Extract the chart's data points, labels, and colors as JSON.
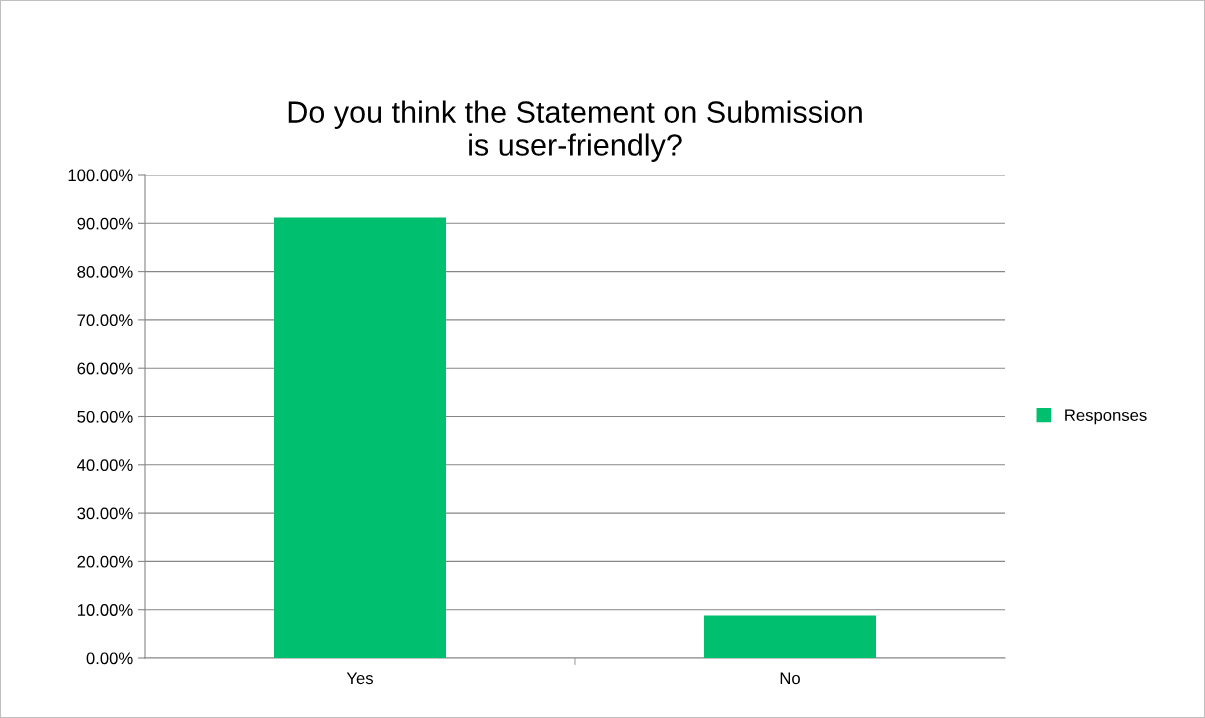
{
  "chart_data": {
    "type": "bar",
    "title": "Do you think the Statement on Submission\nis user-friendly?",
    "categories": [
      "Yes",
      "No"
    ],
    "series": [
      {
        "name": "Responses",
        "color": "#00bf6f",
        "values": [
          91.2,
          8.8
        ]
      }
    ],
    "ylim": [
      0,
      100
    ],
    "yticks": [
      {
        "value": 0,
        "label": "0.00%"
      },
      {
        "value": 10,
        "label": "10.00%"
      },
      {
        "value": 20,
        "label": "20.00%"
      },
      {
        "value": 30,
        "label": "30.00%"
      },
      {
        "value": 40,
        "label": "40.00%"
      },
      {
        "value": 50,
        "label": "50.00%"
      },
      {
        "value": 60,
        "label": "60.00%"
      },
      {
        "value": 70,
        "label": "70.00%"
      },
      {
        "value": 80,
        "label": "80.00%"
      },
      {
        "value": 90,
        "label": "90.00%"
      },
      {
        "value": 100,
        "label": "100.00%"
      }
    ],
    "grid": "y",
    "legend": "right"
  }
}
